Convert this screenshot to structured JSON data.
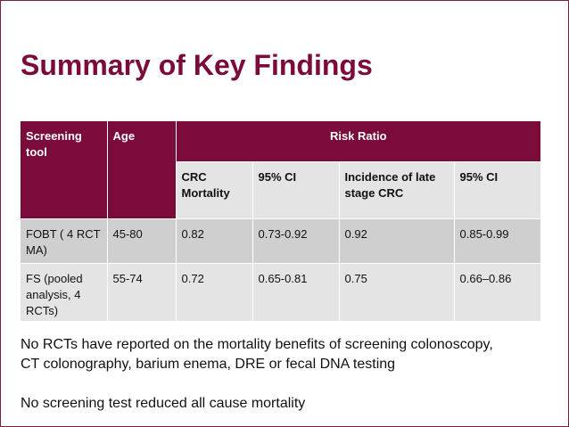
{
  "title": "Summary of Key Findings",
  "table": {
    "header": {
      "screening_tool": "Screening tool",
      "age": "Age",
      "risk_ratio": "Risk Ratio"
    },
    "subheader": [
      "CRC Mortality",
      "95% CI",
      "Incidence of late stage CRC",
      "95% CI"
    ],
    "rows": [
      {
        "tool": "FOBT ( 4 RCT MA)",
        "age": "45-80",
        "crc_mortality": "0.82",
        "ci1": "0.73-0.92",
        "incidence": "0.92",
        "ci2": "0.85-0.99"
      },
      {
        "tool": "FS (pooled analysis, 4 RCTs)",
        "age": "55-74",
        "crc_mortality": "0.72",
        "ci1": "0.65-0.81",
        "incidence": "0.75",
        "ci2": "0.66–0.86"
      }
    ]
  },
  "notes": {
    "line1": "No RCTs have reported on the mortality benefits of screening colonoscopy,",
    "line2": "CT colonography, barium enema, DRE or fecal DNA testing",
    "line3": "No screening test reduced all cause mortality"
  },
  "colors": {
    "accent": "#7a0b3a",
    "row_dark": "#cfcfcf",
    "row_light": "#e4e4e4"
  }
}
